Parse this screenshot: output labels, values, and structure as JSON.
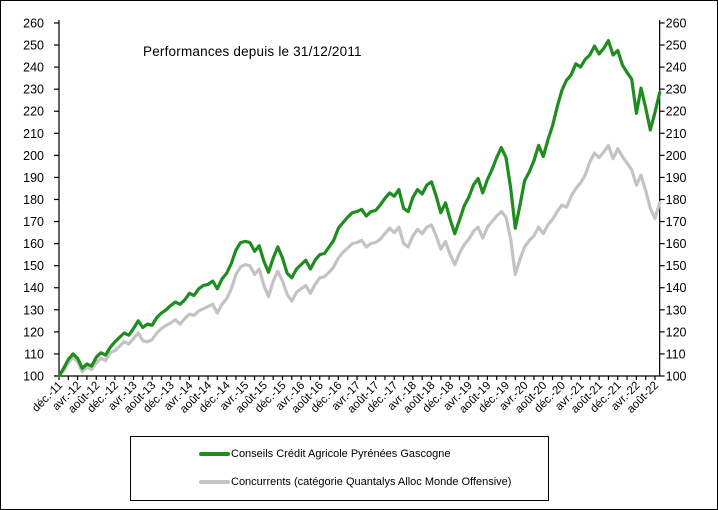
{
  "chart_data": {
    "type": "line",
    "title": "Performances depuis le 31/12/2011",
    "grid": false,
    "legend_position": "bottom",
    "start_value": 100,
    "x_start": "déc.-11",
    "x_end_of_data": "sept.-22",
    "months_per_label": 4,
    "x_labels": [
      "déc.-11",
      "avr.-12",
      "août-12",
      "déc.-12",
      "avr.-13",
      "août-13",
      "déc.-13",
      "avr.-14",
      "août-14",
      "déc.-14",
      "avr.-15",
      "août-15",
      "déc.-15",
      "avr.-16",
      "août-16",
      "déc.-16",
      "avr.-17",
      "août-17",
      "déc.-17",
      "avr.-18",
      "août-18",
      "déc.-18",
      "avr.-19",
      "août-19",
      "déc.-19",
      "avr.-20",
      "août-20",
      "déc.-20",
      "avr.-21",
      "août-21",
      "déc.-21",
      "avr.-22",
      "août-22"
    ],
    "y_axis": {
      "min": 100,
      "max": 260,
      "step": 10,
      "sides": "both"
    },
    "axis_color": "#000000",
    "series": [
      {
        "id": "conseils",
        "name": "Conseils Crédit Agricole Pyrénées Gascogne",
        "color": "#1e8c1e",
        "values": [
          100,
          103.5,
          107.5,
          110,
          108,
          103.5,
          105.5,
          104.5,
          108.5,
          110.5,
          109.5,
          113,
          115.5,
          117.5,
          119.5,
          118.5,
          121.5,
          125,
          122,
          123.5,
          123,
          126.5,
          128.5,
          130,
          132,
          133.5,
          132.5,
          134.5,
          137.5,
          136.5,
          139.5,
          141,
          141.5,
          143,
          139.5,
          144,
          146.5,
          151,
          157,
          160.5,
          161,
          160.5,
          156.5,
          159,
          152,
          147,
          153.5,
          158.5,
          153.5,
          146.5,
          144.5,
          148.5,
          150.5,
          152.5,
          148.5,
          152.5,
          155,
          155.5,
          158.5,
          161.5,
          167,
          169.5,
          172,
          174,
          174.5,
          175.5,
          172.5,
          174.5,
          175,
          177.5,
          180.5,
          183,
          181.5,
          184.5,
          176,
          174.5,
          181,
          184.5,
          182.5,
          186.5,
          188,
          181.5,
          174,
          178.5,
          171,
          164.5,
          170.5,
          177,
          181,
          186.5,
          189.5,
          183,
          189,
          193.5,
          199,
          203.5,
          199,
          185,
          167,
          177.5,
          188.5,
          192.5,
          197.5,
          204.5,
          199.5,
          207,
          213.5,
          222,
          229.5,
          234,
          236.5,
          241.5,
          240,
          243.5,
          245.5,
          249.5,
          246,
          248.5,
          252,
          245.5,
          247.5,
          241,
          237.5,
          234.5,
          219,
          230.5,
          221.5,
          211.5,
          219.5,
          228.5
        ]
      },
      {
        "id": "concurrents",
        "name": "Concurrents (catégorie Quantalys Alloc Monde Offensive)",
        "color": "#c3c3c3",
        "values": [
          100,
          102.5,
          106,
          108.5,
          106.5,
          102,
          104,
          103,
          106,
          108,
          107,
          110.5,
          111.5,
          113.5,
          115.5,
          114.5,
          117,
          119.5,
          116,
          115.5,
          116.5,
          119.5,
          121.5,
          123,
          124,
          125.5,
          123.5,
          126,
          128,
          127.5,
          129.5,
          130.5,
          131.5,
          132.5,
          128.5,
          132.5,
          135,
          139.5,
          146,
          149.5,
          150.5,
          150,
          146,
          148.5,
          141,
          136,
          143,
          147.5,
          143,
          137,
          134,
          138,
          139.5,
          141,
          137.5,
          141.5,
          144.5,
          145,
          147,
          149.5,
          153.5,
          156,
          158,
          160,
          160.5,
          161.5,
          158.5,
          160,
          160.5,
          162,
          164.5,
          167,
          165,
          167.5,
          160,
          158.5,
          163.5,
          166.5,
          164.5,
          167.5,
          168.5,
          163.5,
          157.5,
          161,
          155,
          150.5,
          155.5,
          159.5,
          162,
          165.5,
          167.5,
          162.5,
          167.5,
          170,
          172.5,
          174.5,
          172,
          162,
          146,
          153,
          158.5,
          161.5,
          163.5,
          167.5,
          164.5,
          168.5,
          171,
          174.5,
          177.5,
          176.5,
          181.5,
          185,
          187.5,
          191,
          197,
          201,
          199,
          201.5,
          204.5,
          198.5,
          203,
          199.5,
          196.5,
          193.5,
          186.5,
          191,
          184,
          176,
          171.5,
          178.5
        ]
      }
    ]
  }
}
